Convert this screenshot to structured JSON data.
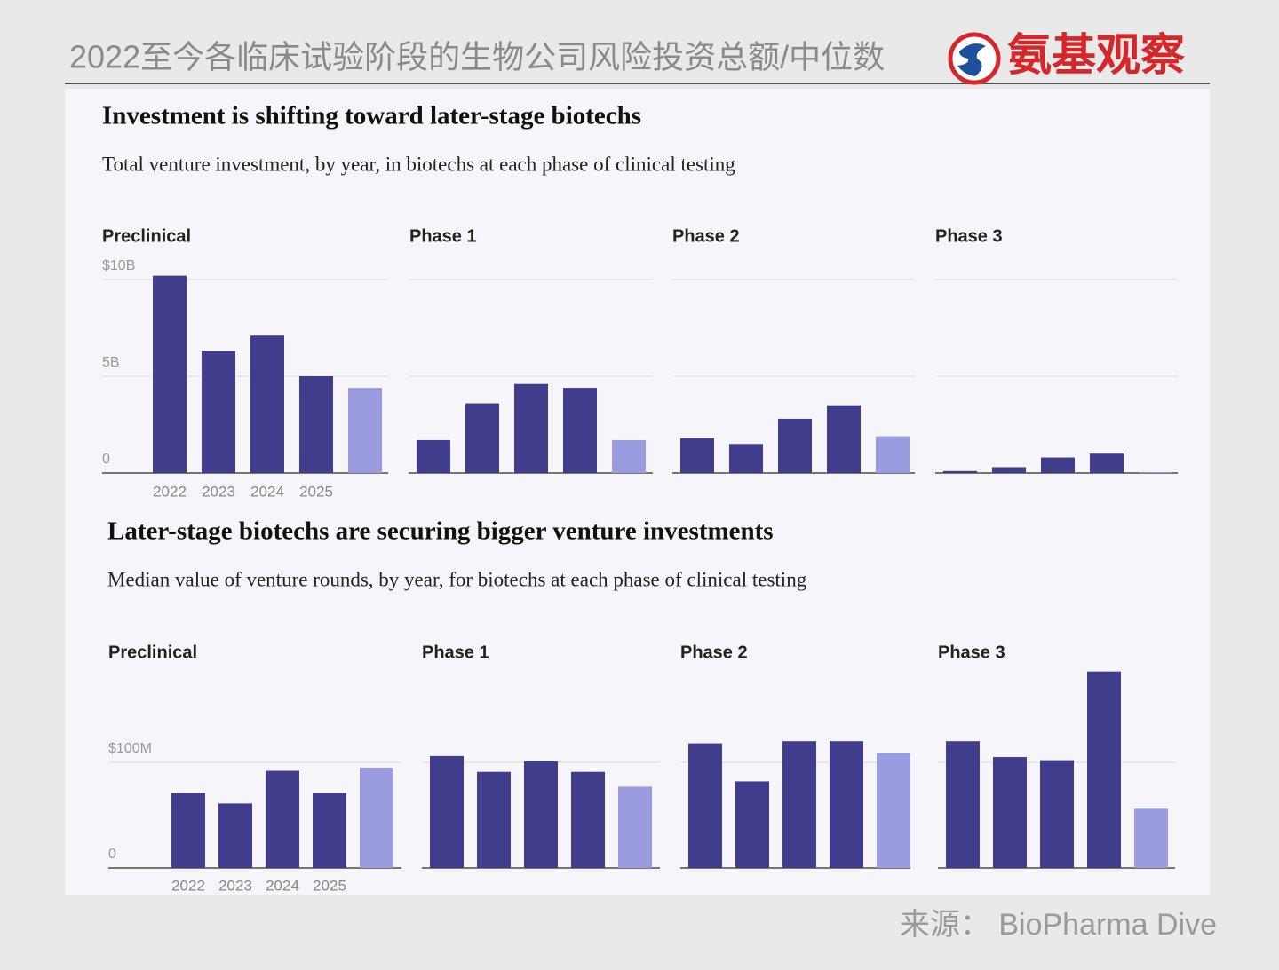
{
  "header": {
    "title": "2022至今各临床试验阶段的生物公司风险投资总额/中位数",
    "logo": "氨基观察"
  },
  "source": "来源： BioPharma Dive",
  "chart_data": [
    {
      "type": "bar",
      "title": "Investment is shifting toward later-stage biotechs",
      "subtitle": "Total venture investment, by year, in biotechs at each phase of clinical testing",
      "categories": [
        "2022",
        "2023",
        "2024",
        "2025",
        null
      ],
      "colors": [
        "#3f3d8c",
        "#3f3d8c",
        "#3f3d8c",
        "#3f3d8c",
        "#9b9be0"
      ],
      "ylim": [
        0,
        10.5
      ],
      "yticks": [
        {
          "value": 0,
          "label": "0"
        },
        {
          "value": 5,
          "label": "5B"
        },
        {
          "value": 10,
          "label": "$10B"
        }
      ],
      "grid": true,
      "panels": [
        {
          "name": "Preclinical",
          "values": [
            10.2,
            6.3,
            7.1,
            5.0,
            4.4
          ]
        },
        {
          "name": "Phase 1",
          "values": [
            1.7,
            3.6,
            4.6,
            4.4,
            1.7
          ]
        },
        {
          "name": "Phase 2",
          "values": [
            1.8,
            1.5,
            2.8,
            3.5,
            1.9
          ]
        },
        {
          "name": "Phase 3",
          "values": [
            0.1,
            0.3,
            0.8,
            1.0,
            0.05
          ]
        }
      ]
    },
    {
      "type": "bar",
      "title": "Later-stage biotechs are securing bigger venture investments",
      "subtitle": "Median value of venture rounds, by year, for biotechs at each phase of clinical testing",
      "categories": [
        "2022",
        "2023",
        "2024",
        "2025",
        null
      ],
      "colors": [
        "#3f3d8c",
        "#3f3d8c",
        "#3f3d8c",
        "#3f3d8c",
        "#9b9be0"
      ],
      "ylim": [
        0,
        200
      ],
      "yticks": [
        {
          "value": 0,
          "label": "0"
        },
        {
          "value": 100,
          "label": "$100M"
        }
      ],
      "grid": true,
      "panels": [
        {
          "name": "Preclinical",
          "values": [
            71,
            61,
            92,
            71,
            95
          ]
        },
        {
          "name": "Phase 1",
          "values": [
            106,
            91,
            101,
            91,
            77
          ]
        },
        {
          "name": "Phase 2",
          "values": [
            118,
            82,
            120,
            120,
            109
          ]
        },
        {
          "name": "Phase 3",
          "values": [
            120,
            105,
            102,
            186,
            56
          ]
        }
      ]
    }
  ]
}
